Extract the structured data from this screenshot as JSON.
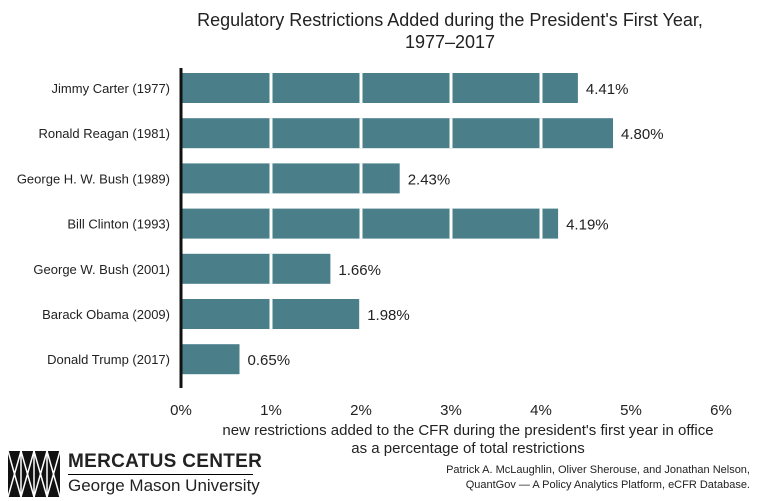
{
  "chart_data": {
    "type": "bar",
    "orientation": "horizontal",
    "title": "Regulatory Restrictions Added during the President's First Year, 1977–2017",
    "title_lines": [
      "Regulatory Restrictions Added during the President's First Year,",
      "1977–2017"
    ],
    "categories": [
      "Jimmy Carter (1977)",
      "Ronald Reagan (1981)",
      "George H. W. Bush (1989)",
      "Bill Clinton (1993)",
      "George W. Bush (2001)",
      "Barack Obama (2009)",
      "Donald Trump (2017)"
    ],
    "values": [
      4.41,
      4.8,
      2.43,
      4.19,
      1.66,
      1.98,
      0.65
    ],
    "data_labels": [
      "4.41%",
      "4.80%",
      "2.43%",
      "4.19%",
      "1.66%",
      "1.98%",
      "0.65%"
    ],
    "xlim": [
      0,
      6
    ],
    "xticks": [
      "0%",
      "1%",
      "2%",
      "3%",
      "4%",
      "5%",
      "6%"
    ],
    "xlabel_lines": [
      "new restrictions added to the CFR during the president's first year in office",
      "as a percentage of total restrictions"
    ],
    "ylabel": "",
    "grid": "white lines at each integer percent across bars",
    "legend": "none",
    "bar_color": "#4a7f8a"
  },
  "logo": {
    "name": "MERCATUS CENTER",
    "sub": "George Mason University"
  },
  "source": [
    "Patrick A. McLaughlin, Oliver Sherouse, and Jonathan Nelson,",
    "QuantGov — A Policy Analytics Platform, eCFR Database."
  ]
}
